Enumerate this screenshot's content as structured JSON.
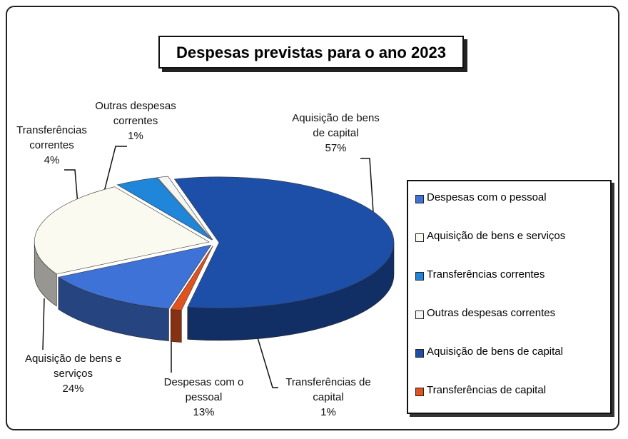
{
  "chart_data": {
    "type": "pie",
    "title": "Despesas previstas para o ano 2023",
    "categories": [
      "Despesas com o pessoal",
      "Aquisição de bens e serviços",
      "Transferências correntes",
      "Outras despesas correntes",
      "Aquisição de bens de capital",
      "Transferências de capital"
    ],
    "values": [
      13,
      24,
      4,
      1,
      57,
      1
    ],
    "value_labels": [
      "13%",
      "24%",
      "4%",
      "1%",
      "57%",
      "1%"
    ],
    "colors": [
      "#3f72d6",
      "#fbfaf0",
      "#1f86d9",
      "#f4f6f4",
      "#1d4fa8",
      "#e0521e"
    ],
    "legend": "right"
  }
}
